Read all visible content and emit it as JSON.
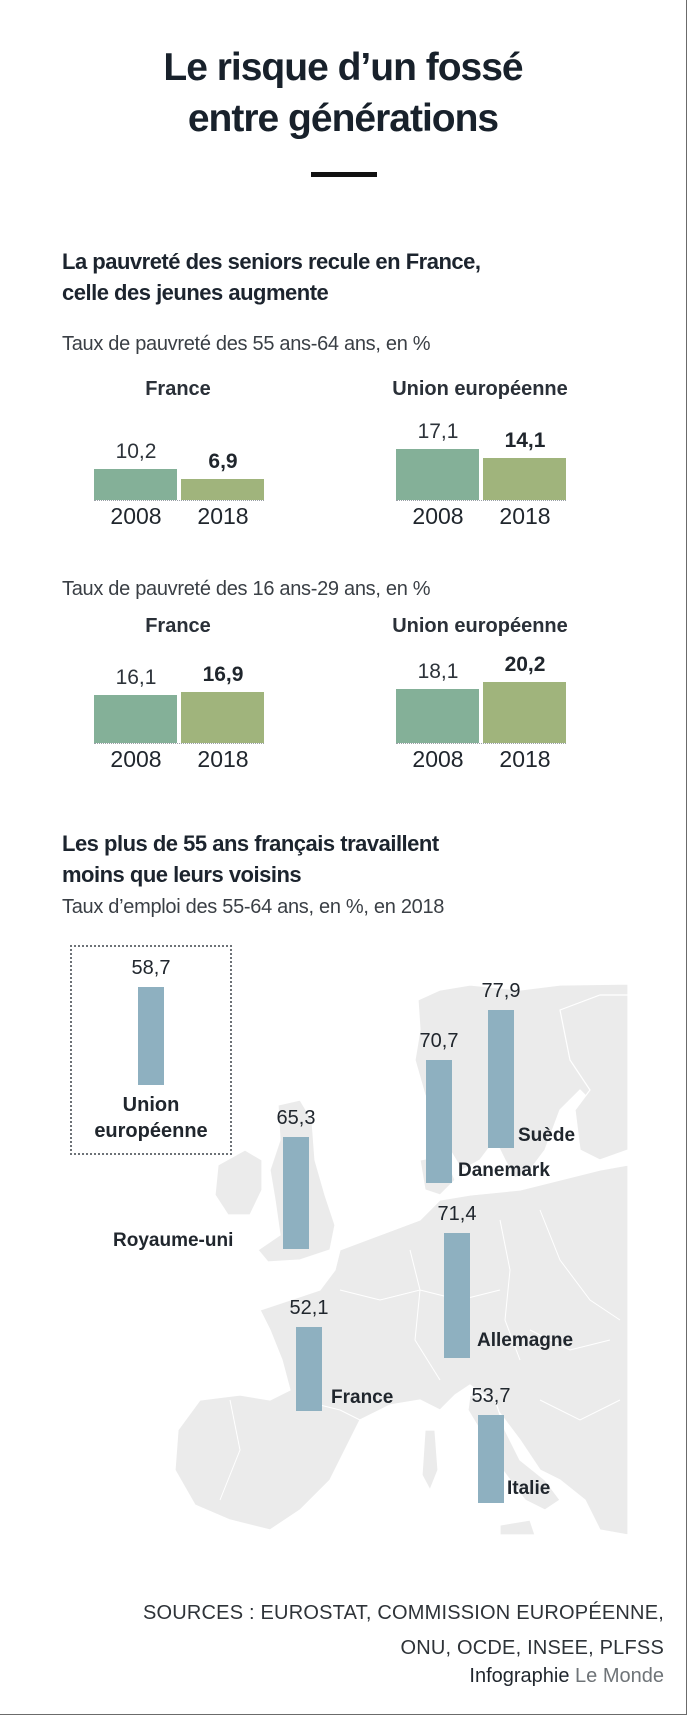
{
  "title": "Le risque d’un fossé\nentre générations",
  "title_lines": [
    "Le risque d’un fossé",
    "entre générations"
  ],
  "colors": {
    "bar_2008": "#84b098",
    "bar_2018": "#a0b47c",
    "map_bar": "#8eb0c0",
    "map_land": "#ebebeb",
    "text": "#1a232d"
  },
  "section1": {
    "title_lines": [
      "La pauvreté des seniors recule en France,",
      "celle des jeunes augmente"
    ]
  },
  "section2": {
    "title_lines": [
      "Les plus de 55 ans français travaillent",
      "moins que leurs voisins"
    ]
  },
  "chart_data": [
    {
      "type": "bar",
      "title": "Taux de pauvreté des 55 ans-64 ans, en %",
      "categories": [
        "2008",
        "2018"
      ],
      "groups": [
        {
          "name": "France",
          "values": [
            10.2,
            6.9
          ],
          "labels": [
            "10,2",
            "6,9"
          ]
        },
        {
          "name": "Union européenne",
          "values": [
            17.1,
            14.1
          ],
          "labels": [
            "17,1",
            "14,1"
          ]
        }
      ],
      "xlabel": "",
      "ylabel": "",
      "grid": false
    },
    {
      "type": "bar",
      "title": "Taux de pauvreté des 16 ans-29 ans, en %",
      "categories": [
        "2008",
        "2018"
      ],
      "groups": [
        {
          "name": "France",
          "values": [
            16.1,
            16.9
          ],
          "labels": [
            "16,1",
            "16,9"
          ]
        },
        {
          "name": "Union européenne",
          "values": [
            18.1,
            20.2
          ],
          "labels": [
            "18,1",
            "20,2"
          ]
        }
      ],
      "xlabel": "",
      "ylabel": "",
      "grid": false
    },
    {
      "type": "bar",
      "title": "Taux d’emploi des 55-64 ans, en %, en 2018",
      "note": "Barres verticales positionnées sur une carte de l’Europe",
      "categories": [
        "Union européenne",
        "Royaume-uni",
        "Danemark",
        "Suède",
        "Allemagne",
        "France",
        "Italie"
      ],
      "values": [
        58.7,
        65.3,
        70.7,
        77.9,
        71.4,
        52.1,
        53.7
      ],
      "labels": [
        "58,7",
        "65,3",
        "70,7",
        "77,9",
        "71,4",
        "52,1",
        "53,7"
      ],
      "xlabel": "",
      "ylabel": "",
      "grid": false
    }
  ],
  "footer": {
    "sources_lines": [
      "SOURCES : EUROSTAT, COMMISSION EUROPÉENNE,",
      "ONU, OCDE, INSEE, PLFSS"
    ],
    "credit_prefix": "Infographie",
    "credit_brand": "Le Monde"
  }
}
